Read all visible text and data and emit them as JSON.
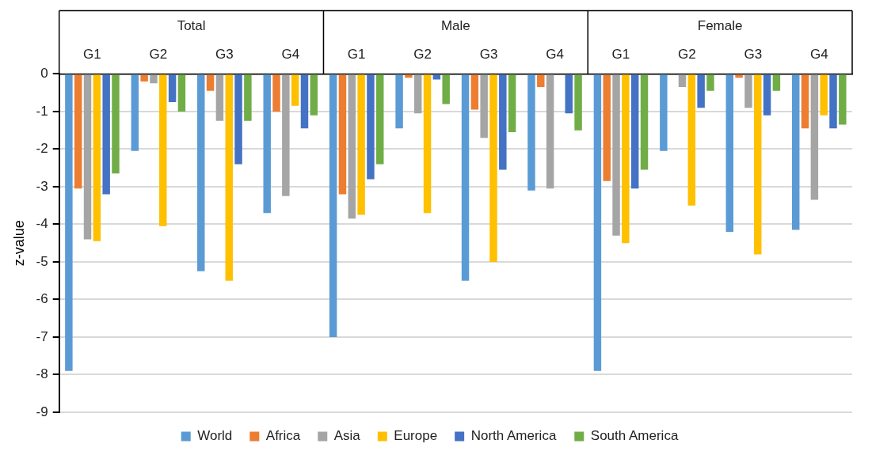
{
  "chart_data": {
    "type": "bar",
    "ylabel": "z-value",
    "categories": [
      "G1",
      "G2",
      "G3",
      "G4",
      "G1",
      "G2",
      "G3",
      "G4",
      "G1",
      "G2",
      "G3",
      "G4"
    ],
    "annotations": [
      "Total",
      "Male",
      "Female"
    ],
    "series": [
      {
        "name": "World",
        "color": "#5b9bd5",
        "values": [
          -7.9,
          -2.05,
          -5.25,
          -3.7,
          -7.0,
          -1.45,
          -5.5,
          -3.1,
          -7.9,
          -2.05,
          -4.2,
          -4.15
        ]
      },
      {
        "name": "Africa",
        "color": "#ed7d31",
        "values": [
          -3.05,
          -0.2,
          -0.45,
          -1.0,
          -3.2,
          -0.1,
          -0.95,
          -0.35,
          -2.85,
          0,
          -0.1,
          -1.45
        ]
      },
      {
        "name": "Asia",
        "color": "#a5a5a5",
        "values": [
          -4.4,
          -0.25,
          -1.25,
          -3.25,
          -3.85,
          -1.05,
          -1.7,
          -3.05,
          -4.3,
          -0.35,
          -0.9,
          -3.35
        ]
      },
      {
        "name": "Europe",
        "color": "#ffc000",
        "values": [
          -4.45,
          -4.05,
          -5.5,
          -0.85,
          -3.75,
          -3.7,
          -5.0,
          0,
          -4.5,
          -3.5,
          -4.8,
          -1.1
        ]
      },
      {
        "name": "North America",
        "color": "#4472c4",
        "values": [
          -3.2,
          -0.75,
          -2.4,
          -1.45,
          -2.8,
          -0.15,
          -2.55,
          -1.05,
          -3.05,
          -0.9,
          -1.1,
          -1.45
        ]
      },
      {
        "name": "South America",
        "color": "#70ad47",
        "values": [
          -2.65,
          -1.0,
          -1.25,
          -1.1,
          -2.4,
          -0.8,
          -1.55,
          -1.5,
          -2.55,
          -0.45,
          -0.45,
          -1.35
        ]
      }
    ],
    "ylim": [
      -9,
      0
    ],
    "yticks": [
      0,
      -1,
      -2,
      -3,
      -4,
      -5,
      -6,
      -7,
      -8,
      -9
    ],
    "grid": "y",
    "legend": "bottom"
  }
}
